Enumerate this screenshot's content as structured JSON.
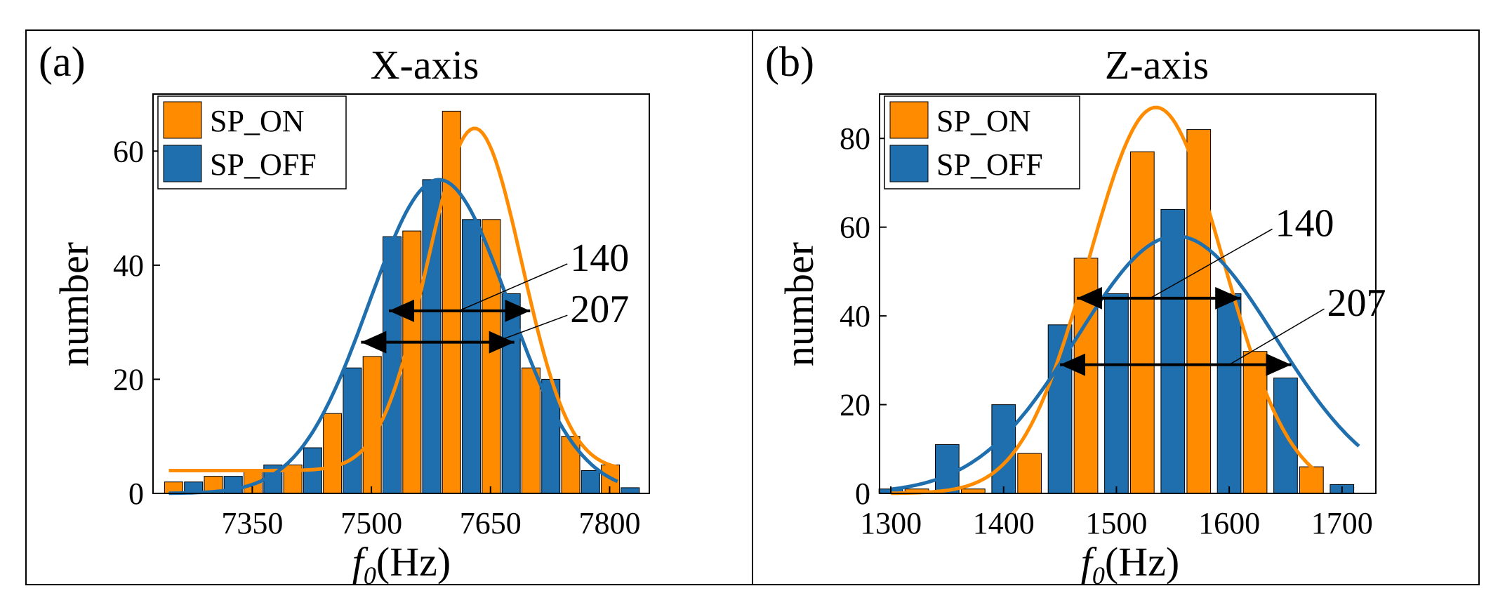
{
  "figure": {
    "panels": [
      {
        "label": "(a)"
      },
      {
        "label": "(b)"
      }
    ]
  },
  "chart_data": [
    {
      "type": "bar",
      "panel_label": "(a)",
      "title": "X-axis",
      "xlabel_italic": "f",
      "xlabel_sub": "0",
      "xlabel_rest": "(Hz)",
      "ylabel": "number",
      "xlim": [
        7225,
        7850
      ],
      "ylim": [
        0,
        70
      ],
      "xticks": [
        7350,
        7500,
        7650,
        7800
      ],
      "yticks": [
        0,
        20,
        40,
        60
      ],
      "bar_width": 23,
      "legend": {
        "position": "top-left"
      },
      "series": [
        {
          "name": "SP_ON",
          "color": "#ff8c00",
          "x": [
            7251,
            7301,
            7351,
            7401,
            7451,
            7501,
            7551,
            7601,
            7651,
            7701,
            7751,
            7801
          ],
          "values": [
            2,
            3,
            4,
            5,
            14,
            24,
            46,
            67,
            48,
            22,
            10,
            5
          ]
        },
        {
          "name": "SP_OFF",
          "color": "#1f6fae",
          "x": [
            7276,
            7326,
            7376,
            7426,
            7476,
            7526,
            7576,
            7626,
            7676,
            7726,
            7776,
            7826
          ],
          "values": [
            2,
            3,
            5,
            8,
            22,
            45,
            55,
            48,
            35,
            20,
            4,
            1
          ]
        }
      ],
      "fits": [
        {
          "series": "SP_ON",
          "color": "#ff8c00",
          "y0": 4,
          "A": 60,
          "xc": 7630,
          "w": 119,
          "x_from": 7245,
          "x_to": 7810
        },
        {
          "series": "SP_OFF",
          "color": "#1f6fae",
          "y0": 0,
          "A": 55,
          "xc": 7585,
          "w": 176,
          "x_from": 7245,
          "x_to": 7810
        }
      ],
      "annotations": [
        {
          "text": "140",
          "arrow_from": [
            7522,
            32
          ],
          "arrow_to": [
            7700,
            32
          ],
          "leader_from": [
            7610,
            32
          ],
          "label_at": [
            7738,
            39
          ]
        },
        {
          "text": "207",
          "arrow_from": [
            7487,
            26.5
          ],
          "arrow_to": [
            7680,
            26.5
          ],
          "leader_from": [
            7655,
            26.5
          ],
          "label_at": [
            7738,
            30
          ]
        }
      ]
    },
    {
      "type": "bar",
      "panel_label": "(b)",
      "title": "Z-axis",
      "xlabel_italic": "f",
      "xlabel_sub": "0",
      "xlabel_rest": "(Hz)",
      "ylabel": "number",
      "xlim": [
        1290,
        1730
      ],
      "ylim": [
        0,
        90
      ],
      "xticks": [
        1300,
        1400,
        1500,
        1600,
        1700
      ],
      "yticks": [
        0,
        20,
        40,
        60,
        80
      ],
      "bar_width": 21,
      "legend": {
        "position": "top-left"
      },
      "series": [
        {
          "name": "SP_ON",
          "color": "#ff8c00",
          "x": [
            1323,
            1373,
            1423,
            1473,
            1523,
            1573,
            1623,
            1673
          ],
          "values": [
            1,
            1,
            9,
            53,
            77,
            82,
            32,
            6
          ]
        },
        {
          "name": "SP_OFF",
          "color": "#1f6fae",
          "x": [
            1300,
            1350,
            1400,
            1450,
            1500,
            1550,
            1600,
            1650,
            1700
          ],
          "values": [
            1,
            11,
            20,
            38,
            45,
            64,
            45,
            26,
            2
          ]
        }
      ],
      "fits": [
        {
          "series": "SP_ON",
          "color": "#ff8c00",
          "y0": 0,
          "A": 87,
          "xc": 1535,
          "w": 119,
          "x_from": 1300,
          "x_to": 1680
        },
        {
          "series": "SP_OFF",
          "color": "#1f6fae",
          "y0": 0,
          "A": 58,
          "xc": 1553,
          "w": 176,
          "x_from": 1300,
          "x_to": 1715
        }
      ],
      "annotations": [
        {
          "text": "140",
          "arrow_from": [
            1465,
            44
          ],
          "arrow_to": [
            1610,
            44
          ],
          "leader_from": [
            1530,
            44
          ],
          "label_at": [
            1632,
            58
          ]
        },
        {
          "text": "207",
          "arrow_from": [
            1450,
            29
          ],
          "arrow_to": [
            1655,
            29
          ],
          "leader_from": [
            1600,
            29
          ],
          "label_at": [
            1678,
            40
          ]
        }
      ]
    }
  ]
}
